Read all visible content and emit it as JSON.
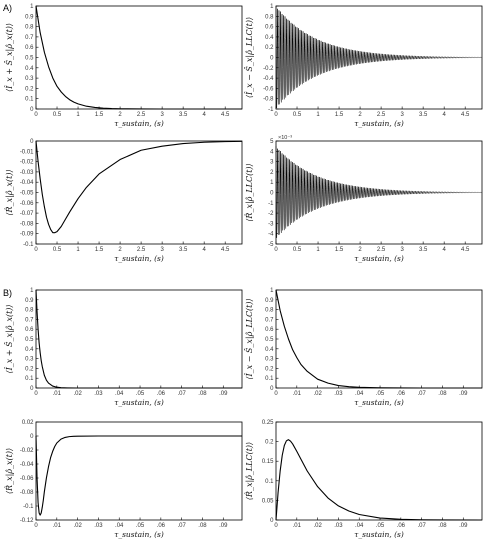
{
  "figure": {
    "panel_labels": [
      "A)",
      "B)"
    ],
    "colors": {
      "line": "#000000",
      "frame": "#000000",
      "text": "#333333",
      "background": "#ffffff"
    }
  },
  "chart_data": [
    {
      "id": "A1",
      "type": "line",
      "panel": "A",
      "title": "",
      "xlabel": "τ_sustain, (s)",
      "ylabel": "⟨Î_x + Ŝ_x|ρ̂_x(t)⟩",
      "xlim": [
        0,
        4.9
      ],
      "ylim": [
        0,
        1
      ],
      "xticks": [
        0,
        0.5,
        1,
        1.5,
        2,
        2.5,
        3,
        3.5,
        4,
        4.5
      ],
      "yticks": [
        0,
        0.1,
        0.2,
        0.3,
        0.4,
        0.5,
        0.6,
        0.7,
        0.8,
        0.9,
        1
      ],
      "x": [
        0,
        0.1,
        0.2,
        0.3,
        0.4,
        0.5,
        0.6,
        0.7,
        0.8,
        0.9,
        1.0,
        1.2,
        1.4,
        1.6,
        1.8,
        2.0,
        2.5,
        3.0,
        4.0,
        4.9
      ],
      "y": [
        1.0,
        0.74,
        0.55,
        0.41,
        0.3,
        0.22,
        0.165,
        0.122,
        0.09,
        0.067,
        0.05,
        0.027,
        0.015,
        0.008,
        0.004,
        0.002,
        0.0005,
        0.0001,
        0,
        0
      ]
    },
    {
      "id": "A2",
      "type": "line",
      "panel": "A",
      "title": "",
      "xlabel": "τ_sustain, (s)",
      "ylabel": "⟨Î_x − Ŝ_x|ρ̂_LLC(t)⟩",
      "xlim": [
        0,
        4.9
      ],
      "ylim": [
        -1,
        1
      ],
      "xticks": [
        0,
        0.5,
        1,
        1.5,
        2,
        2.5,
        3,
        3.5,
        4,
        4.5
      ],
      "yticks": [
        -1,
        -0.8,
        -0.6,
        -0.4,
        -0.2,
        0,
        0.2,
        0.4,
        0.6,
        0.8,
        1
      ],
      "oscillation": {
        "envelope_start": 1.0,
        "envelope_decay_per_s": 1.05,
        "cycles_per_s": 28,
        "grey_band_until_s": 1.0
      }
    },
    {
      "id": "A3",
      "type": "line",
      "panel": "A",
      "title": "",
      "xlabel": "τ_sustain, (s)",
      "ylabel": "⟨R̂_x|ρ̂_x(t)⟩",
      "xlim": [
        0,
        4.9
      ],
      "ylim": [
        -0.1,
        0
      ],
      "xticks": [
        0,
        0.5,
        1,
        1.5,
        2,
        2.5,
        3,
        3.5,
        4,
        4.5
      ],
      "yticks": [
        -0.1,
        -0.09,
        -0.08,
        -0.07,
        -0.06,
        -0.05,
        -0.04,
        -0.03,
        -0.02,
        -0.01,
        0
      ],
      "x": [
        0,
        0.05,
        0.1,
        0.15,
        0.2,
        0.25,
        0.3,
        0.35,
        0.4,
        0.45,
        0.5,
        0.6,
        0.7,
        0.8,
        1.0,
        1.2,
        1.5,
        2.0,
        2.5,
        3.0,
        3.5,
        4.0,
        4.5,
        4.9
      ],
      "y": [
        0,
        -0.02,
        -0.037,
        -0.052,
        -0.064,
        -0.074,
        -0.081,
        -0.086,
        -0.089,
        -0.089,
        -0.088,
        -0.083,
        -0.076,
        -0.069,
        -0.056,
        -0.045,
        -0.032,
        -0.018,
        -0.009,
        -0.005,
        -0.0025,
        -0.0012,
        -0.0006,
        -0.0003
      ]
    },
    {
      "id": "A4",
      "type": "line",
      "panel": "A",
      "title": "",
      "xlabel": "τ_sustain, (s)",
      "ylabel": "⟨R̂_x|ρ̂_LLC(t)⟩",
      "xlim": [
        0,
        4.9
      ],
      "ylim": [
        -5,
        5
      ],
      "exponent_label": "×10⁻³",
      "xticks": [
        0,
        0.5,
        1,
        1.5,
        2,
        2.5,
        3,
        3.5,
        4,
        4.5
      ],
      "yticks": [
        -5,
        -4,
        -3,
        -2,
        -1,
        0,
        1,
        2,
        3,
        4,
        5
      ],
      "oscillation": {
        "envelope_start": 4.5,
        "envelope_decay_per_s": 1.05,
        "cycles_per_s": 28,
        "grey_band_until_s": 1.0
      }
    },
    {
      "id": "B1",
      "type": "line",
      "panel": "B",
      "title": "",
      "xlabel": "τ_sustain, (s)",
      "ylabel": "⟨Î_x + Ŝ_x|ρ̂_x(t)⟩",
      "xlim": [
        0,
        0.099
      ],
      "ylim": [
        0,
        1
      ],
      "xticks": [
        0,
        0.01,
        0.02,
        0.03,
        0.04,
        0.05,
        0.06,
        0.07,
        0.08,
        0.09
      ],
      "yticks": [
        0,
        0.1,
        0.2,
        0.3,
        0.4,
        0.5,
        0.6,
        0.7,
        0.8,
        0.9,
        1
      ],
      "x": [
        0,
        0.0005,
        0.001,
        0.0015,
        0.002,
        0.0025,
        0.003,
        0.004,
        0.005,
        0.006,
        0.008,
        0.01,
        0.012,
        0.015,
        0.02,
        0.03,
        0.05,
        0.099
      ],
      "y": [
        1.0,
        0.78,
        0.6,
        0.46,
        0.36,
        0.28,
        0.22,
        0.13,
        0.08,
        0.05,
        0.02,
        0.008,
        0.003,
        0.001,
        0,
        0,
        0,
        0
      ]
    },
    {
      "id": "B2",
      "type": "line",
      "panel": "B",
      "title": "",
      "xlabel": "τ_sustain, (s)",
      "ylabel": "⟨Î_x − Ŝ_x|ρ̂_LLC(t)⟩",
      "xlim": [
        0,
        0.099
      ],
      "ylim": [
        0,
        1
      ],
      "xticks": [
        0,
        0.01,
        0.02,
        0.03,
        0.04,
        0.05,
        0.06,
        0.07,
        0.08,
        0.09
      ],
      "yticks": [
        0,
        0.1,
        0.2,
        0.3,
        0.4,
        0.5,
        0.6,
        0.7,
        0.8,
        0.9,
        1
      ],
      "x": [
        0,
        0.002,
        0.004,
        0.006,
        0.008,
        0.01,
        0.012,
        0.015,
        0.02,
        0.025,
        0.03,
        0.035,
        0.04,
        0.05,
        0.06,
        0.07,
        0.08,
        0.099
      ],
      "y": [
        1.0,
        0.79,
        0.63,
        0.5,
        0.39,
        0.31,
        0.24,
        0.17,
        0.09,
        0.05,
        0.025,
        0.013,
        0.007,
        0.002,
        0.0005,
        0,
        0,
        0
      ]
    },
    {
      "id": "B3",
      "type": "line",
      "panel": "B",
      "title": "",
      "xlabel": "τ_sustain, (s)",
      "ylabel": "⟨R̂_x|ρ̂_x(t)⟩",
      "xlim": [
        0,
        0.099
      ],
      "ylim": [
        -0.12,
        0.02
      ],
      "xticks": [
        0,
        0.01,
        0.02,
        0.03,
        0.04,
        0.05,
        0.06,
        0.07,
        0.08,
        0.09
      ],
      "yticks": [
        -0.12,
        -0.1,
        -0.08,
        -0.06,
        -0.04,
        -0.02,
        0,
        0.02
      ],
      "x": [
        0,
        0.0005,
        0.001,
        0.0015,
        0.002,
        0.0025,
        0.003,
        0.0035,
        0.004,
        0.005,
        0.006,
        0.007,
        0.008,
        0.009,
        0.01,
        0.012,
        0.014,
        0.016,
        0.018,
        0.02,
        0.03,
        0.05,
        0.099
      ],
      "y": [
        0,
        -0.06,
        -0.095,
        -0.11,
        -0.113,
        -0.11,
        -0.102,
        -0.092,
        -0.08,
        -0.06,
        -0.044,
        -0.031,
        -0.022,
        -0.015,
        -0.01,
        -0.0045,
        -0.002,
        -0.0009,
        -0.0004,
        -0.0002,
        0,
        0,
        0
      ]
    },
    {
      "id": "B4",
      "type": "line",
      "panel": "B",
      "title": "",
      "xlabel": "τ_sustain, (s)",
      "ylabel": "⟨R̂_x|ρ̂_LLC(t)⟩",
      "xlim": [
        0,
        0.099
      ],
      "ylim": [
        0,
        0.25
      ],
      "xticks": [
        0,
        0.01,
        0.02,
        0.03,
        0.04,
        0.05,
        0.06,
        0.07,
        0.08,
        0.09
      ],
      "yticks": [
        0,
        0.05,
        0.1,
        0.15,
        0.2,
        0.25
      ],
      "x": [
        0,
        0.001,
        0.002,
        0.003,
        0.004,
        0.005,
        0.006,
        0.007,
        0.008,
        0.01,
        0.012,
        0.015,
        0.02,
        0.025,
        0.03,
        0.035,
        0.04,
        0.05,
        0.06,
        0.07,
        0.08,
        0.099
      ],
      "y": [
        0,
        0.07,
        0.125,
        0.165,
        0.19,
        0.202,
        0.205,
        0.201,
        0.194,
        0.175,
        0.155,
        0.125,
        0.085,
        0.056,
        0.036,
        0.023,
        0.014,
        0.005,
        0.0018,
        0.0006,
        0.0002,
        0
      ]
    }
  ]
}
